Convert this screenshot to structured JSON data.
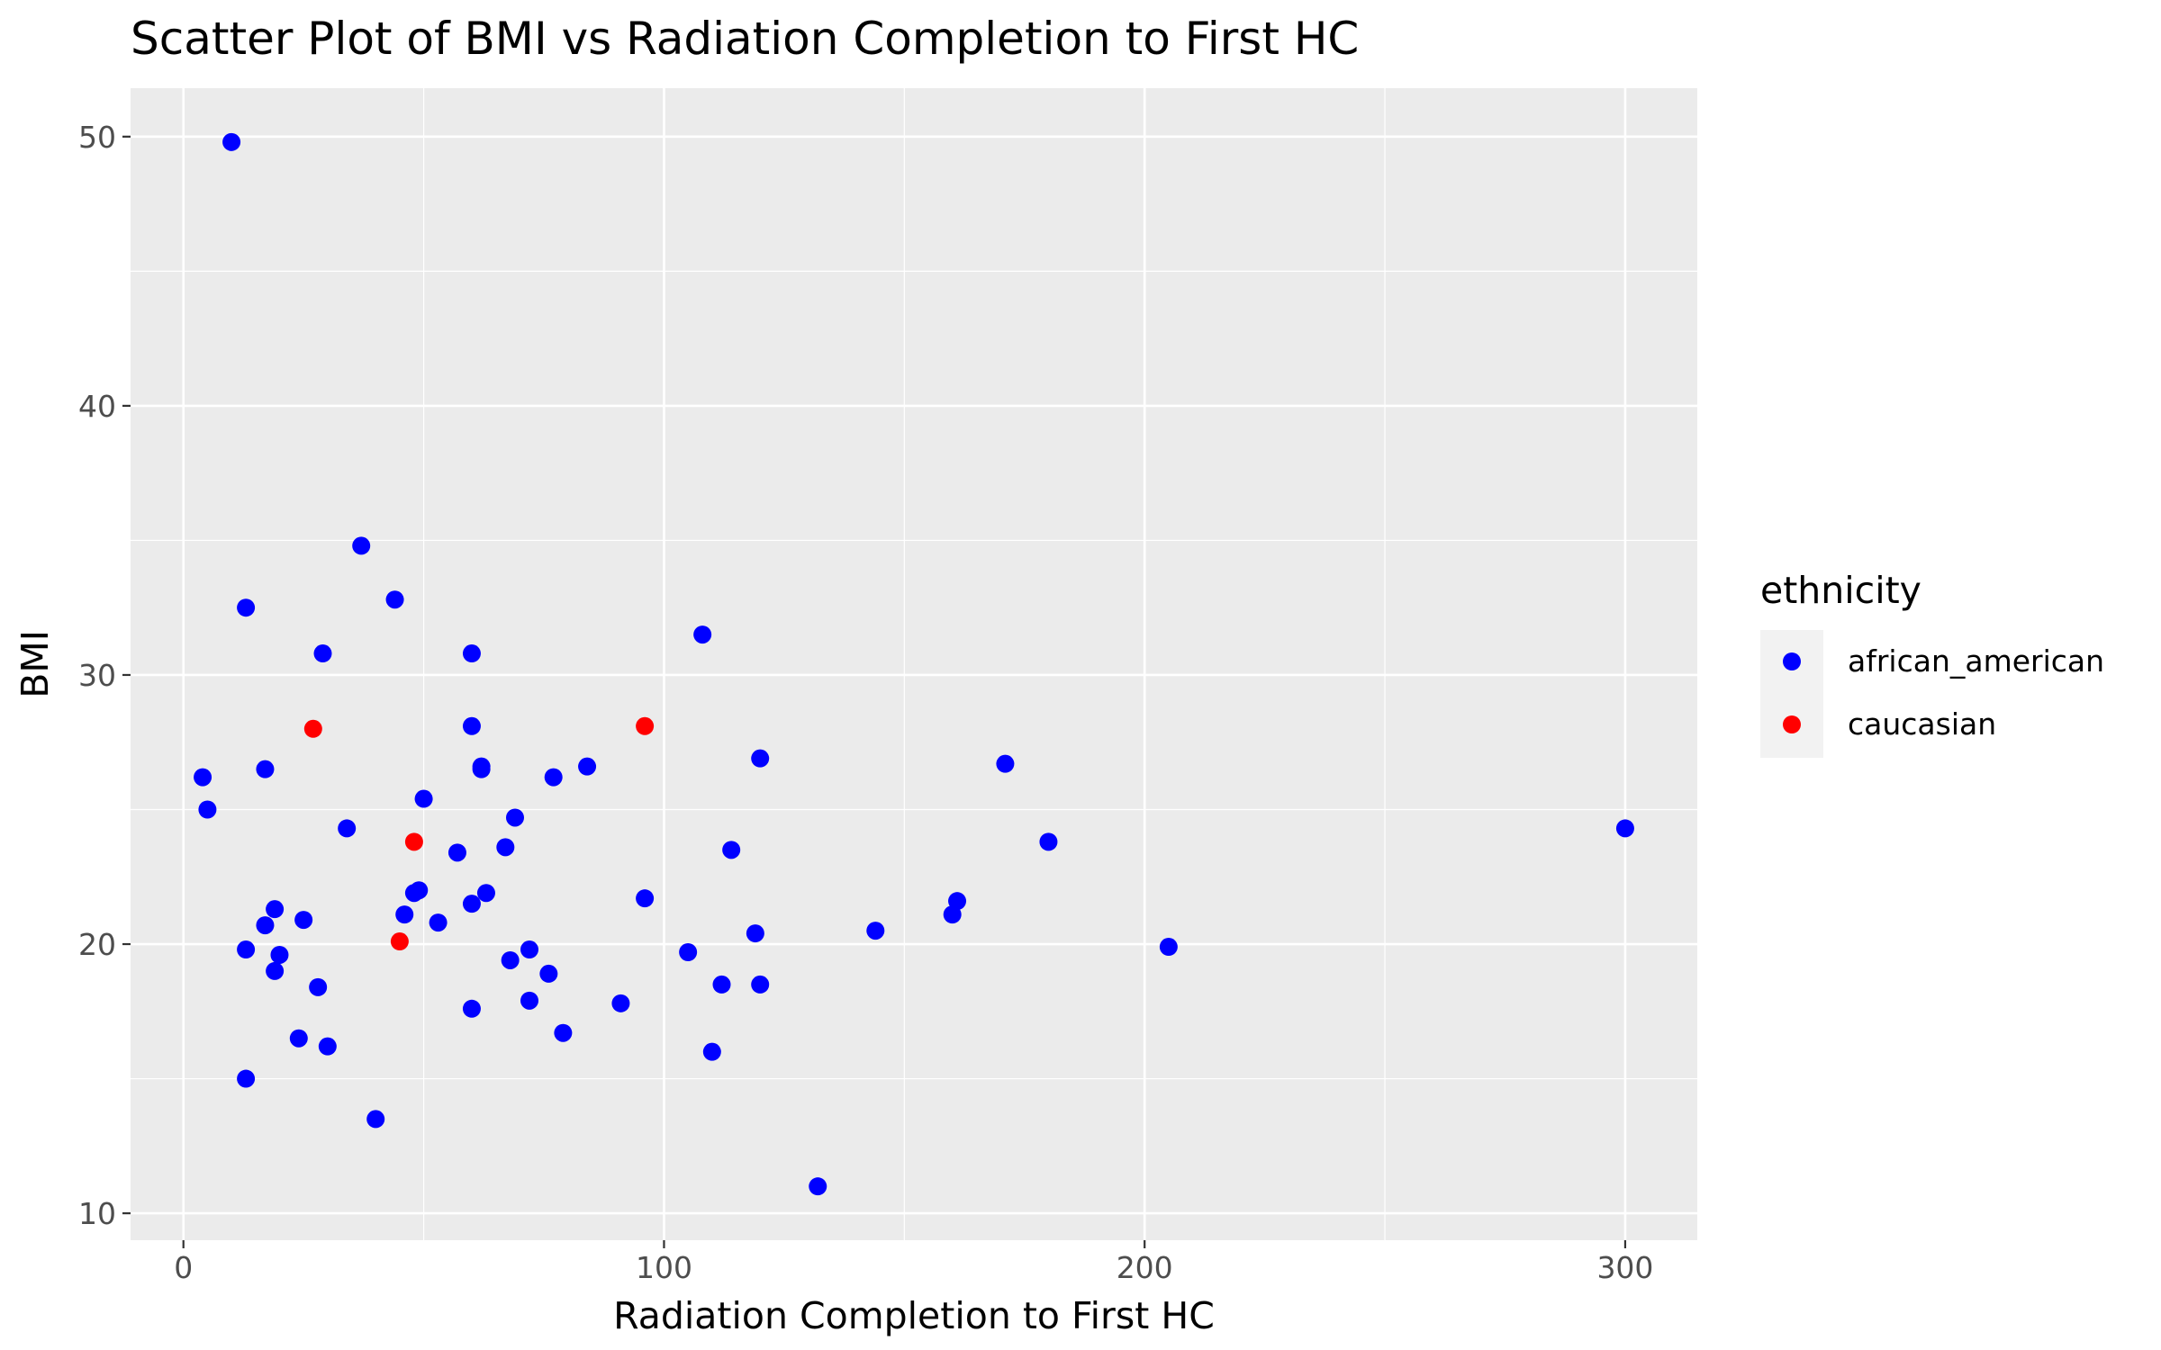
{
  "chart_data": {
    "type": "scatter",
    "title": "Scatter Plot of BMI vs Radiation Completion to First HC",
    "xlabel": "Radiation Completion to First HC",
    "ylabel": "BMI",
    "xlim": [
      -11,
      315
    ],
    "ylim": [
      9,
      51.8
    ],
    "x_ticks": [
      0,
      100,
      200,
      300
    ],
    "x_tick_labels": [
      "0",
      "100",
      "200",
      "300"
    ],
    "y_ticks": [
      10,
      20,
      30,
      40,
      50
    ],
    "y_tick_labels": [
      "10",
      "20",
      "30",
      "40",
      "50"
    ],
    "grid": true,
    "legend_position": "right",
    "legend_title": "ethnicity",
    "series": [
      {
        "name": "african_american",
        "color": "#0000FF",
        "points": [
          [
            10,
            49.8
          ],
          [
            37,
            34.8
          ],
          [
            13,
            32.5
          ],
          [
            44,
            32.8
          ],
          [
            29,
            30.8
          ],
          [
            60,
            30.8
          ],
          [
            108,
            31.5
          ],
          [
            60,
            28.1
          ],
          [
            4,
            26.2
          ],
          [
            17,
            26.5
          ],
          [
            62,
            26.6
          ],
          [
            62,
            26.5
          ],
          [
            77,
            26.2
          ],
          [
            84,
            26.6
          ],
          [
            120,
            26.9
          ],
          [
            171,
            26.7
          ],
          [
            5,
            25.0
          ],
          [
            50,
            25.4
          ],
          [
            69,
            24.7
          ],
          [
            34,
            24.3
          ],
          [
            57,
            23.4
          ],
          [
            67,
            23.6
          ],
          [
            114,
            23.5
          ],
          [
            180,
            23.8
          ],
          [
            300,
            24.3
          ],
          [
            48,
            21.9
          ],
          [
            49,
            22.0
          ],
          [
            63,
            21.9
          ],
          [
            60,
            21.5
          ],
          [
            96,
            21.7
          ],
          [
            161,
            21.6
          ],
          [
            160,
            21.1
          ],
          [
            19,
            21.3
          ],
          [
            46,
            21.1
          ],
          [
            17,
            20.7
          ],
          [
            25,
            20.9
          ],
          [
            53,
            20.8
          ],
          [
            119,
            20.4
          ],
          [
            144,
            20.5
          ],
          [
            205,
            19.9
          ],
          [
            13,
            19.8
          ],
          [
            20,
            19.6
          ],
          [
            72,
            19.8
          ],
          [
            68,
            19.4
          ],
          [
            105,
            19.7
          ],
          [
            19,
            19.0
          ],
          [
            76,
            18.9
          ],
          [
            28,
            18.4
          ],
          [
            72,
            17.9
          ],
          [
            91,
            17.8
          ],
          [
            112,
            18.5
          ],
          [
            120,
            18.5
          ],
          [
            60,
            17.6
          ],
          [
            79,
            16.7
          ],
          [
            24,
            16.5
          ],
          [
            30,
            16.2
          ],
          [
            110,
            16.0
          ],
          [
            13,
            15.0
          ],
          [
            40,
            13.5
          ],
          [
            132,
            11.0
          ]
        ]
      },
      {
        "name": "caucasian",
        "color": "#FF0000",
        "points": [
          [
            27,
            28.0
          ],
          [
            96,
            28.1
          ],
          [
            48,
            23.8
          ],
          [
            45,
            20.1
          ]
        ]
      }
    ]
  }
}
